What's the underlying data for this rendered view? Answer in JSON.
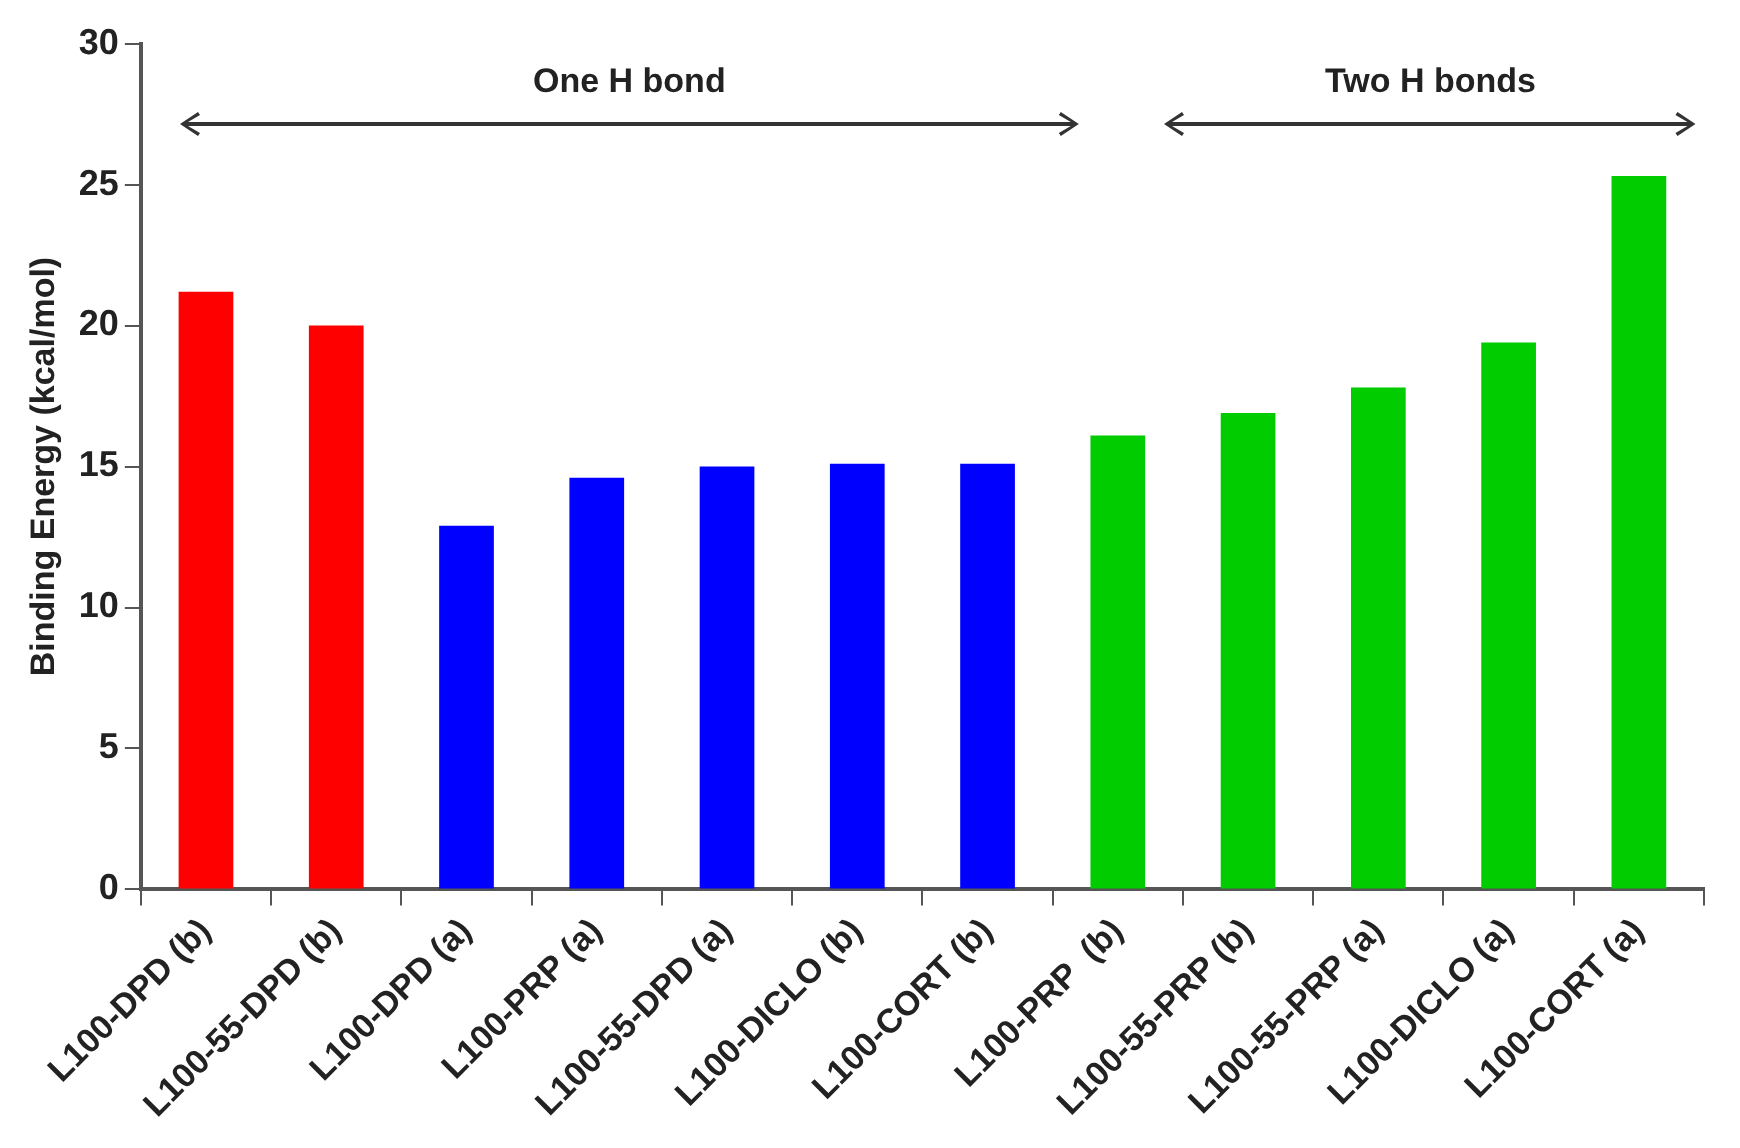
{
  "chart_data": {
    "type": "bar",
    "ylabel": "Binding Energy (kcal/mol)",
    "categories": [
      "L100-DPD (b)",
      "L100-55-DPD (b)",
      "L100-DPD (a)",
      "L100-PRP (a)",
      "L100-55-DPD (a)",
      "L100-DICLO (b)",
      "L100-CORT (b)",
      "L100-PRP  (b)",
      "L100-55-PRP (b)",
      "L100-55-PRP (a)",
      "L100-DICLO (a)",
      "L100-CORT (a)"
    ],
    "values": [
      21.2,
      20.0,
      12.9,
      14.6,
      15.0,
      15.1,
      15.1,
      16.1,
      16.9,
      17.8,
      19.4,
      25.3
    ],
    "colors": [
      "#ff0000",
      "#ff0000",
      "#0000ff",
      "#0000ff",
      "#0000ff",
      "#0000ff",
      "#0000ff",
      "#00cc00",
      "#00cc00",
      "#00cc00",
      "#00cc00",
      "#00cc00"
    ],
    "ylim": [
      0,
      30
    ],
    "yticks": [
      0,
      5,
      10,
      15,
      20,
      25,
      30
    ],
    "grid": false,
    "legend": false,
    "annotations": [
      "One H bond",
      "Two H bonds"
    ]
  }
}
